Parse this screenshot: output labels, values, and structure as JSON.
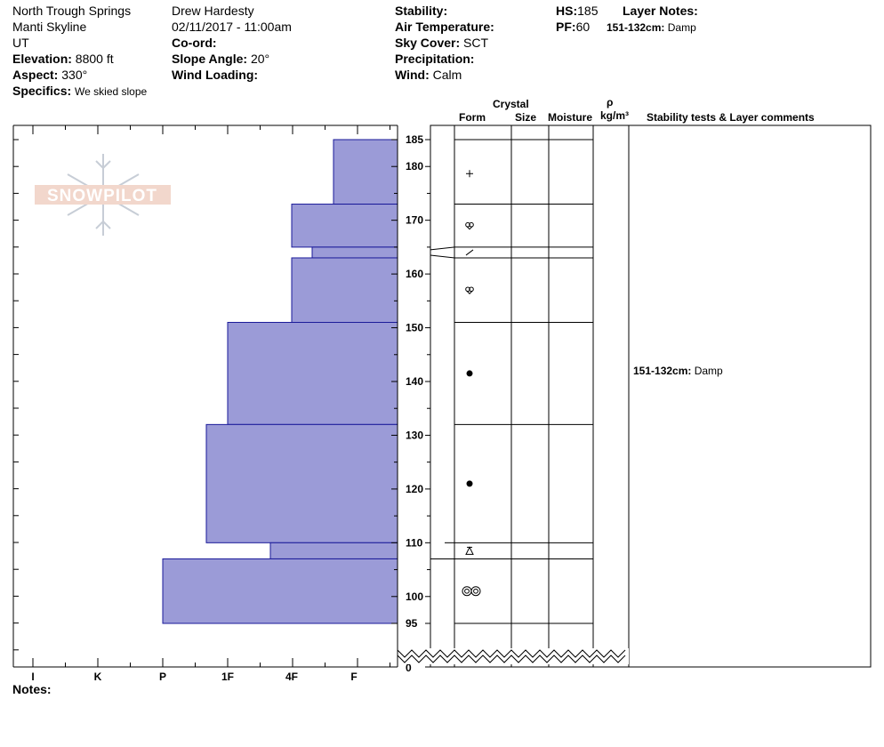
{
  "header": {
    "location": "North Trough Springs",
    "range": "Manti Skyline",
    "state": "UT",
    "elevation_label": "Elevation:",
    "elevation_value": "8800 ft",
    "aspect_label": "Aspect:",
    "aspect_value": "330°",
    "specifics_label": "Specifics:",
    "specifics_value": "We skied slope",
    "observer": "Drew Hardesty",
    "datetime": "02/11/2017 - 11:00am",
    "coord_label": "Co-ord:",
    "slope_label": "Slope Angle:",
    "slope_value": "20°",
    "wind_loading_label": "Wind Loading:",
    "stability_label": "Stability:",
    "air_temp_label": "Air Temperature:",
    "sky_cover_label": "Sky Cover:",
    "sky_cover_value": "SCT",
    "precip_label": "Precipitation:",
    "wind_label": "Wind:",
    "wind_value": "Calm",
    "hs_label": "HS:",
    "hs_value": "185",
    "pf_label": "PF:",
    "pf_value": "60",
    "layer_notes_label": "Layer Notes:",
    "layer_note": "151-132cm:",
    "layer_note_value": "Damp"
  },
  "logo": {
    "text": "SNOWPILOT"
  },
  "column_headers": {
    "crystal": "Crystal",
    "form": "Form",
    "size": "Size",
    "moisture": "Moisture",
    "rho": "ρ",
    "density_unit": "kg/m³",
    "comments": "Stability tests & Layer comments"
  },
  "notes_label": "Notes:",
  "comment_entries": [
    {
      "range": "151-132cm:",
      "text": "Damp",
      "depth": 141
    }
  ],
  "chart_data": {
    "type": "bar",
    "ylim": [
      95,
      185
    ],
    "depth_ticks": [
      185,
      180,
      170,
      160,
      150,
      140,
      130,
      120,
      110,
      100,
      95,
      0
    ],
    "hardness_categories": [
      "I",
      "K",
      "P",
      "1F",
      "4F",
      "F"
    ],
    "hardness_axis_labels": [
      "I",
      "K",
      "P",
      "1F",
      "4F",
      "F"
    ],
    "layers": [
      {
        "top": 185,
        "bottom": 173,
        "hardness": "F",
        "form": "+"
      },
      {
        "top": 173,
        "bottom": 165,
        "hardness": "4F",
        "form": "rounding-faceted"
      },
      {
        "top": 165,
        "bottom": 163,
        "hardness": "4F-",
        "form": "/"
      },
      {
        "top": 163,
        "bottom": 151,
        "hardness": "4F",
        "form": "rounding-faceted"
      },
      {
        "top": 151,
        "bottom": 132,
        "hardness": "1F",
        "form": "•"
      },
      {
        "top": 132,
        "bottom": 110,
        "hardness": "1F+",
        "form": "•"
      },
      {
        "top": 110,
        "bottom": 107,
        "hardness": "1F-",
        "form": "surface-hoar"
      },
      {
        "top": 107,
        "bottom": 95,
        "hardness": "P",
        "form": "◎◎"
      }
    ],
    "colors": {
      "bar_fill": "#9b9bd7",
      "bar_stroke": "#1a1a99"
    }
  }
}
